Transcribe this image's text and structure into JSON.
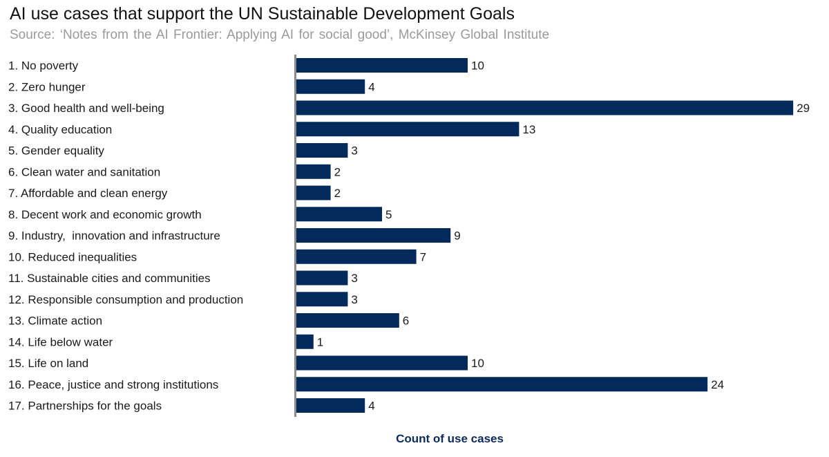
{
  "chart_data": {
    "type": "bar",
    "orientation": "horizontal",
    "title": "AI use cases that support the UN Sustainable Development Goals",
    "subtitle": "Source: ‘Notes from the AI Frontier: Applying AI for social good’, McKinsey Global Institute",
    "xlabel": "Count of use cases",
    "ylabel": "",
    "xlim": [
      0,
      29
    ],
    "grid": false,
    "legend": "none",
    "bar_color": "#042a5c",
    "categories": [
      "1. No poverty",
      "2. Zero hunger",
      "3. Good health and well-being",
      "4. Quality education",
      "5. Gender equality",
      "6. Clean water and sanitation",
      "7. Affordable and clean energy",
      "8. Decent work and economic growth",
      "9. Industry,  innovation and infrastructure",
      "10. Reduced inequalities",
      "11. Sustainable cities and communities",
      "12. Responsible consumption and production",
      "13. Climate action",
      "14. Life below water",
      "15. Life on land",
      "16. Peace, justice and strong institutions",
      "17. Partnerships for the goals"
    ],
    "values": [
      10,
      4,
      29,
      13,
      3,
      2,
      2,
      5,
      9,
      7,
      3,
      3,
      6,
      1,
      10,
      24,
      4
    ]
  }
}
